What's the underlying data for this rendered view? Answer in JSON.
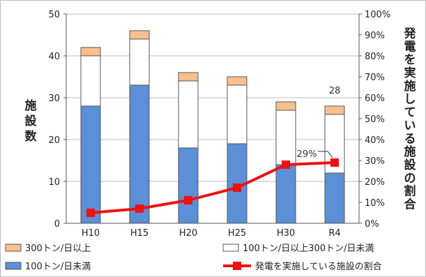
{
  "chart_data": {
    "type": "bar",
    "stacked": true,
    "categories": [
      "H10",
      "H15",
      "H20",
      "H25",
      "H30",
      "R4"
    ],
    "series": [
      {
        "name": "100トン/日未満",
        "kind": "bar",
        "color": "#5b8fd6",
        "values": [
          28,
          33,
          18,
          19,
          14,
          12
        ]
      },
      {
        "name": "100トン/日以上300トン/日未満",
        "kind": "bar",
        "color": "#ffffff",
        "values": [
          12,
          11,
          16,
          14,
          13,
          14
        ]
      },
      {
        "name": "300トン/日以上",
        "kind": "bar",
        "color": "#f9bf8f",
        "values": [
          2,
          2,
          2,
          2,
          2,
          2
        ]
      },
      {
        "name": "発電を実施している施設の割合",
        "kind": "line",
        "axis": "right",
        "color": "#ee1111",
        "values": [
          5,
          7,
          11,
          17,
          28,
          29
        ]
      }
    ],
    "ylabel": "施設数",
    "y2label": "発電を実施している施設の割合",
    "ylim": [
      0,
      50
    ],
    "y2lim": [
      0,
      100
    ],
    "yticks": [
      "0",
      "10",
      "20",
      "30",
      "40",
      "50"
    ],
    "y2ticks": [
      "0%",
      "10%",
      "20%",
      "30%",
      "40%",
      "50%",
      "60%",
      "70%",
      "80%",
      "90%",
      "100%"
    ],
    "annotations": [
      {
        "text": "28",
        "category": "R4",
        "value": 28,
        "axis": "left"
      },
      {
        "text": "29%",
        "category": "R4",
        "value": 29,
        "axis": "right"
      }
    ],
    "grid": true,
    "legend": [
      {
        "label": "300トン/日以上",
        "series": 2
      },
      {
        "label": "100トン/日以上300トン/日未満",
        "series": 1
      },
      {
        "label": "100トン/日未満",
        "series": 0
      },
      {
        "label": "発電を実施している施設の割合",
        "series": 3
      }
    ],
    "legend_position": "bottom"
  }
}
